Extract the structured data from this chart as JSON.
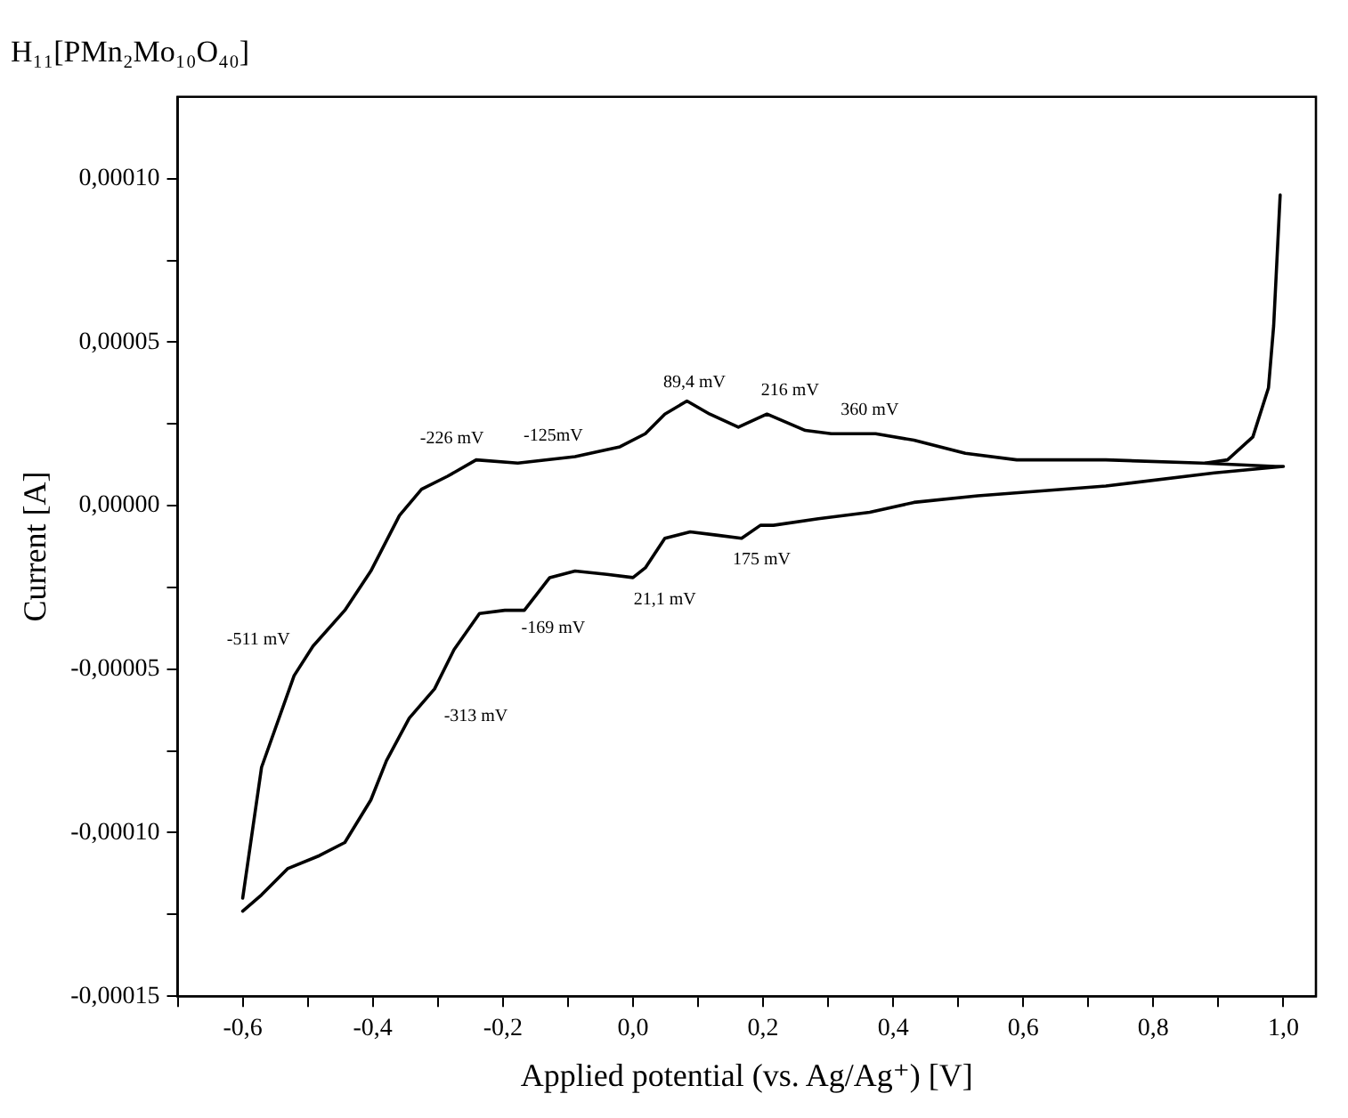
{
  "chart_data": {
    "type": "line",
    "title": "H₁₁[PMn₂Mo₁₀O₄₀]",
    "xlabel": "Applied potential (vs. Ag/Ag⁺) [V]",
    "ylabel": "Current [A]",
    "xlim": [
      -0.7,
      1.05
    ],
    "ylim": [
      -0.00015,
      0.000125
    ],
    "xticks": [
      {
        "value": -0.7,
        "label": null
      },
      {
        "value": -0.6,
        "label": "-0,6"
      },
      {
        "value": -0.5,
        "label": null
      },
      {
        "value": -0.4,
        "label": "-0,4"
      },
      {
        "value": -0.3,
        "label": null
      },
      {
        "value": -0.2,
        "label": "-0,2"
      },
      {
        "value": -0.1,
        "label": null
      },
      {
        "value": 0,
        "label": "0,0"
      },
      {
        "value": 0.1,
        "label": null
      },
      {
        "value": 0.2,
        "label": "0,2"
      },
      {
        "value": 0.3,
        "label": null
      },
      {
        "value": 0.4,
        "label": "0,4"
      },
      {
        "value": 0.5,
        "label": null
      },
      {
        "value": 0.6,
        "label": "0,6"
      },
      {
        "value": 0.7,
        "label": null
      },
      {
        "value": 0.8,
        "label": "0,8"
      },
      {
        "value": 0.9,
        "label": null
      },
      {
        "value": 1.0,
        "label": "1,0"
      }
    ],
    "yticks": [
      {
        "value": -0.00015,
        "label": "-0,00015"
      },
      {
        "value": -0.000125,
        "label": null
      },
      {
        "value": -0.0001,
        "label": "-0,00010"
      },
      {
        "value": -7.5e-05,
        "label": null
      },
      {
        "value": -5e-05,
        "label": "-0,00005"
      },
      {
        "value": -2.5e-05,
        "label": null
      },
      {
        "value": 0,
        "label": "0,00000"
      },
      {
        "value": 2.5e-05,
        "label": null
      },
      {
        "value": 5e-05,
        "label": "0,00005"
      },
      {
        "value": 7.5e-05,
        "label": null
      },
      {
        "value": 0.0001,
        "label": "0,00010"
      }
    ],
    "grid": false,
    "legend": false,
    "marker": "none",
    "line_style": "solid",
    "series": [
      {
        "color": "#000000",
        "x": [
          -0.6,
          -0.571,
          -0.521,
          -0.492,
          -0.443,
          -0.403,
          -0.359,
          -0.325,
          -0.285,
          -0.241,
          -0.177,
          -0.089,
          -0.02,
          0.019,
          0.049,
          0.083,
          0.118,
          0.162,
          0.206,
          0.265,
          0.305,
          0.373,
          0.432,
          0.511,
          0.59,
          0.727,
          0.875,
          0.988,
          1.0,
          0.894,
          0.727,
          0.53,
          0.432,
          0.364,
          0.285,
          0.216,
          0.196,
          0.167,
          0.128,
          0.088,
          0.049,
          0.019,
          0.0,
          -0.04,
          -0.089,
          -0.128,
          -0.167,
          -0.197,
          -0.236,
          -0.275,
          -0.305,
          -0.344,
          -0.379,
          -0.403,
          -0.443,
          -0.482,
          -0.531,
          -0.571,
          -0.6
        ],
        "values": [
          -0.00012,
          -8e-05,
          -5.2e-05,
          -4.3e-05,
          -3.2e-05,
          -2e-05,
          -3e-06,
          5e-06,
          9e-06,
          1.4e-05,
          1.3e-05,
          1.5e-05,
          1.8e-05,
          2.2e-05,
          2.8e-05,
          3.2e-05,
          2.8e-05,
          2.4e-05,
          2.8e-05,
          2.3e-05,
          2.2e-05,
          2.2e-05,
          2e-05,
          1.6e-05,
          1.4e-05,
          1.4e-05,
          1.3e-05,
          1.2e-05,
          1.2e-05,
          1e-05,
          6e-06,
          3e-06,
          1e-06,
          -2e-06,
          -4e-06,
          -6e-06,
          -6e-06,
          -1e-05,
          -9e-06,
          -8e-06,
          -1e-05,
          -1.9e-05,
          -2.2e-05,
          -2.1e-05,
          -2e-05,
          -2.2e-05,
          -3.2e-05,
          -3.2e-05,
          -3.3e-05,
          -4.4e-05,
          -5.6e-05,
          -6.5e-05,
          -7.8e-05,
          -9e-05,
          -0.000103,
          -0.000107,
          -0.000111,
          -0.000119,
          -0.000124
        ]
      },
      {
        "color": "#000000",
        "x": [
          0.88,
          0.914,
          0.953,
          0.977,
          0.985,
          0.995
        ],
        "values": [
          1.3e-05,
          1.4e-05,
          2.1e-05,
          3.6e-05,
          5.5e-05,
          9.5e-05
        ]
      }
    ],
    "annotations": [
      "-226 mV",
      "-125mV",
      "89,4 mV",
      "216 mV",
      "360 mV",
      "175 mV",
      "21,1 mV",
      "-169 mV",
      "-313 mV",
      "-511 mV"
    ]
  }
}
